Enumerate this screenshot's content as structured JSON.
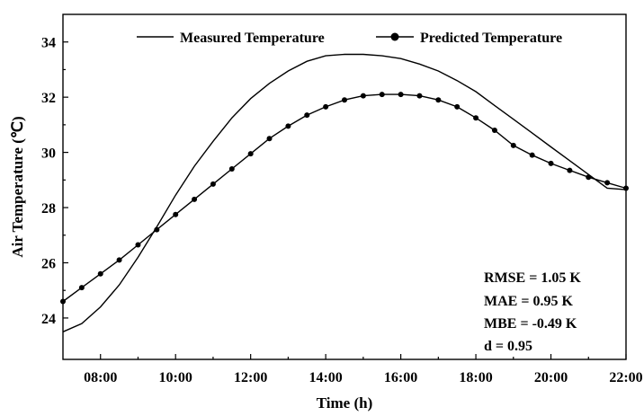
{
  "chart_data": {
    "type": "line",
    "title": "",
    "xlabel": "Time (h)",
    "ylabel": "Air Temperature (℃)",
    "xlim": [
      7,
      22
    ],
    "ylim": [
      22.5,
      35
    ],
    "x_ticks": [
      8,
      10,
      12,
      14,
      16,
      18,
      20,
      22
    ],
    "x_tick_labels": [
      "08:00",
      "10:00",
      "12:00",
      "14:00",
      "16:00",
      "18:00",
      "20:00",
      "22:00"
    ],
    "y_ticks": [
      24,
      26,
      28,
      30,
      32,
      34
    ],
    "y_tick_labels": [
      "24",
      "26",
      "28",
      "30",
      "32",
      "34"
    ],
    "legend_position": "top",
    "grid": false,
    "series": [
      {
        "name": "Measured Temperature",
        "marker": "none",
        "x": [
          7,
          7.5,
          8,
          8.5,
          9,
          9.5,
          10,
          10.5,
          11,
          11.5,
          12,
          12.5,
          13,
          13.5,
          14,
          14.5,
          15,
          15.5,
          16,
          16.5,
          17,
          17.5,
          18,
          18.5,
          19,
          19.5,
          20,
          20.5,
          21,
          21.5,
          22
        ],
        "y": [
          23.5,
          23.8,
          24.4,
          25.2,
          26.2,
          27.3,
          28.45,
          29.5,
          30.4,
          31.25,
          31.95,
          32.5,
          32.95,
          33.3,
          33.5,
          33.55,
          33.55,
          33.5,
          33.4,
          33.2,
          32.95,
          32.6,
          32.2,
          31.7,
          31.2,
          30.7,
          30.2,
          29.7,
          29.2,
          28.7,
          28.65
        ]
      },
      {
        "name": "Predicted Temperature",
        "marker": "circle",
        "x": [
          7,
          7.5,
          8,
          8.5,
          9,
          9.5,
          10,
          10.5,
          11,
          11.5,
          12,
          12.5,
          13,
          13.5,
          14,
          14.5,
          15,
          15.5,
          16,
          16.5,
          17,
          17.5,
          18,
          18.5,
          19,
          19.5,
          20,
          20.5,
          21,
          21.5,
          22
        ],
        "y": [
          24.6,
          25.1,
          25.6,
          26.1,
          26.65,
          27.2,
          27.75,
          28.3,
          28.85,
          29.4,
          29.95,
          30.5,
          30.95,
          31.35,
          31.65,
          31.9,
          32.05,
          32.1,
          32.1,
          32.05,
          31.9,
          31.65,
          31.25,
          30.8,
          30.25,
          29.9,
          29.6,
          29.35,
          29.1,
          28.9,
          28.7
        ]
      }
    ],
    "annotations": [
      "RMSE = 1.05 K",
      "MAE = 0.95 K",
      "MBE = -0.49 K",
      "d = 0.95"
    ]
  }
}
